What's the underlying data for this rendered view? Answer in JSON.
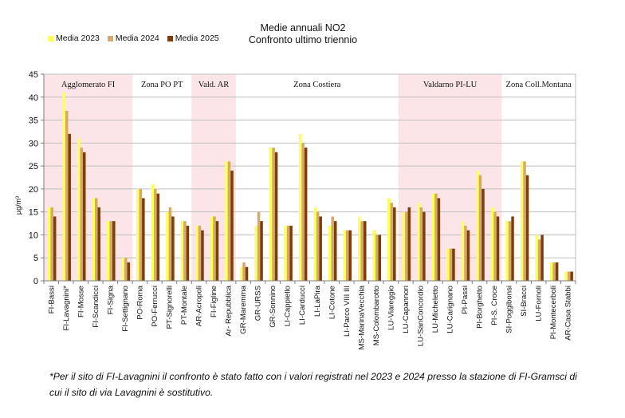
{
  "chart_data": {
    "type": "bar",
    "title": [
      "Medie annuali NO2",
      "Confronto ultimo triennio"
    ],
    "ylabel": "µg/m³",
    "ylim": [
      0,
      45
    ],
    "yticks": [
      0,
      5,
      10,
      15,
      20,
      25,
      30,
      35,
      40,
      45
    ],
    "grid": true,
    "legend_position": "top-left",
    "colors": {
      "band": "#fbe5e8",
      "axis": "#7f7f7f",
      "grid": "#bfbfbf"
    },
    "categories": [
      "FI-Bassi",
      "FI-Lavagnini*",
      "FI-Mosse",
      "FI-Scandicci",
      "FI-Signa",
      "FI-Settignano",
      "PO-Roma",
      "PO-Ferrucci",
      "PT-Signorelli",
      "PT-Montale",
      "AR-Acropoli",
      "FI-Figline",
      "Ar- Repubblica",
      "GR-Maremma",
      "GR-URSS",
      "GR-Sonnino",
      "LI-Cappiello",
      "LI-Carducci",
      "LI-LaPira",
      "LI-Cotone",
      "LI-Parco VIII III",
      "MS-MarinaVecchia",
      "MS-Colombarotto",
      "LU-Viareggio",
      "LU-Capannori",
      "LU-SanConcordio",
      "LU-Micheletto",
      "LU-Carignano",
      "PI-Passi",
      "PI-Borghetto",
      "PI-S. Croce",
      "SI-Poggibonsi",
      "SI-Bracci",
      "LU-Fornoli",
      "PI-Montecerboli",
      "AR-Casa Stabbi"
    ],
    "series": [
      {
        "name": "Media 2023",
        "color": "#ffff5a",
        "values": [
          16,
          41,
          31,
          18,
          13,
          5,
          20,
          21,
          15,
          13,
          12,
          14,
          26,
          3,
          12,
          29,
          12,
          32,
          16,
          12,
          11,
          14,
          11,
          18,
          15,
          17,
          19,
          7,
          13,
          24,
          16,
          13,
          26,
          10,
          4,
          2
        ]
      },
      {
        "name": "Media 2024",
        "color": "#d7a86a",
        "values": [
          16,
          37,
          29,
          18,
          13,
          5,
          20,
          20,
          16,
          13,
          12,
          14,
          26,
          4,
          15,
          29,
          12,
          30,
          15,
          14,
          11,
          13,
          10,
          17,
          15,
          16,
          19,
          7,
          12,
          23,
          15,
          13,
          26,
          9,
          4,
          2
        ]
      },
      {
        "name": "Media 2025",
        "color": "#7b3d12",
        "values": [
          14,
          32,
          28,
          16,
          13,
          4,
          18,
          19,
          14,
          12,
          11,
          13,
          24,
          3,
          13,
          28,
          12,
          29,
          14,
          13,
          11,
          13,
          10,
          16,
          16,
          15,
          18,
          7,
          11,
          20,
          14,
          14,
          23,
          10,
          4,
          2
        ]
      }
    ],
    "zones": [
      {
        "label": "Agglomerato FI",
        "from": 0,
        "to": 5,
        "shaded": true
      },
      {
        "label": "Zona PO PT",
        "from": 6,
        "to": 9,
        "shaded": false
      },
      {
        "label": "Vald. AR",
        "from": 10,
        "to": 12,
        "shaded": true
      },
      {
        "label": "Zona Costiera",
        "from": 13,
        "to": 23,
        "shaded": false
      },
      {
        "label": "Valdarno PI-LU",
        "from": 24,
        "to": 30,
        "shaded": true
      },
      {
        "label": "Zona Coll.Montana",
        "from": 31,
        "to": 35,
        "shaded": false
      }
    ]
  },
  "footnote": "*Per il sito di FI-Lavagnini il confronto è stato fatto con i valori registrati nel 2023 e 2024 presso la stazione di FI-Gramsci di cui il sito di via Lavagnini è sostitutivo."
}
